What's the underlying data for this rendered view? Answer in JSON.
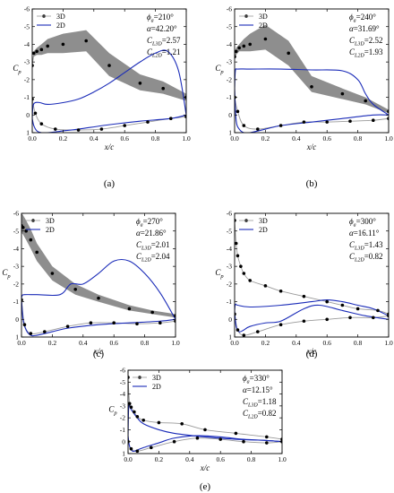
{
  "figure": {
    "panels": [
      {
        "id": "a",
        "caption": "(a)",
        "phi_label": "ϕ",
        "phi_sub": "a",
        "phi_value": "=210°",
        "alpha_label": "α",
        "alpha_value": "=42.20°",
        "cl3d_label": "C",
        "cl3d_sub": "L3D",
        "cl3d_value": "=2.57",
        "cl2d_label": "C",
        "cl2d_sub": "L2D",
        "cl2d_value": "=1.21"
      },
      {
        "id": "b",
        "caption": "(b)",
        "phi_label": "ϕ",
        "phi_sub": "a",
        "phi_value": "=240°",
        "alpha_label": "α",
        "alpha_value": "=31.69°",
        "cl3d_label": "C",
        "cl3d_sub": "L3D",
        "cl3d_value": "=2.52",
        "cl2d_label": "C",
        "cl2d_sub": "L2D",
        "cl2d_value": "=1.93"
      },
      {
        "id": "c",
        "caption": "(c)",
        "phi_label": "ϕ",
        "phi_sub": "a",
        "phi_value": "=270°",
        "alpha_label": "α",
        "alpha_value": "=21.86°",
        "cl3d_label": "C",
        "cl3d_sub": "L3D",
        "cl3d_value": "=2.01",
        "cl2d_label": "C",
        "cl2d_sub": "L2D",
        "cl2d_value": "=2.04"
      },
      {
        "id": "d",
        "caption": "(d)",
        "phi_label": "ϕ",
        "phi_sub": "a",
        "phi_value": "=300°",
        "alpha_label": "α",
        "alpha_value": "=16.11°",
        "cl3d_label": "C",
        "cl3d_sub": "L3D",
        "cl3d_value": "=1.43",
        "cl2d_label": "C",
        "cl2d_sub": "L2D",
        "cl2d_value": "=0.82"
      },
      {
        "id": "e",
        "caption": "(e)",
        "phi_label": "ϕ",
        "phi_sub": "a",
        "phi_value": "=330°",
        "alpha_label": "α",
        "alpha_value": "=12.15°",
        "cl3d_label": "C",
        "cl3d_sub": "L3D",
        "cl3d_value": "=1.18",
        "cl2d_label": "C",
        "cl2d_sub": "L2D",
        "cl2d_value": "=0.82"
      }
    ]
  },
  "chart_data": [
    {
      "type": "line",
      "panel": "a",
      "xlabel": "x/c",
      "ylabel": "C",
      "ylabel_sub": "p",
      "xlim": [
        0,
        1
      ],
      "ylim": [
        -6,
        1
      ],
      "y_inverted": true,
      "xticks": [
        "0.0",
        "0.2",
        "0.4",
        "0.6",
        "0.8",
        "1.0"
      ],
      "yticks": [
        "-6",
        "-5",
        "-4",
        "-3",
        "-2",
        "-1",
        "0",
        "1"
      ],
      "legend": [
        "3D",
        "2D"
      ],
      "legend_position": "top-left",
      "colors": {
        "2D": "#1a2bb8",
        "3D": "#000000",
        "band": "#8e8e8e"
      },
      "series": [
        {
          "name": "3D",
          "style": "markers-with-band",
          "x": [
            0.0,
            0.01,
            0.03,
            0.06,
            0.1,
            0.2,
            0.35,
            0.5,
            0.7,
            0.85,
            1.0
          ],
          "y": [
            -2.8,
            -3.5,
            -3.6,
            -3.7,
            -3.9,
            -4.0,
            -4.2,
            -2.8,
            -1.8,
            -1.5,
            -1.0
          ],
          "band_upper": [
            -3.0,
            -3.6,
            -3.8,
            -4.0,
            -4.3,
            -4.6,
            -4.8,
            -3.5,
            -2.3,
            -1.9,
            -1.2
          ],
          "band_lower": [
            -2.6,
            -3.3,
            -3.4,
            -3.4,
            -3.5,
            -3.5,
            -3.6,
            -2.2,
            -1.4,
            -1.2,
            -0.8
          ]
        },
        {
          "name": "3D",
          "style": "markers",
          "x": [
            0.0,
            0.02,
            0.06,
            0.15,
            0.3,
            0.45,
            0.6,
            0.75,
            0.9,
            1.0
          ],
          "y": [
            -0.9,
            -0.1,
            0.5,
            0.8,
            0.85,
            0.8,
            0.6,
            0.4,
            0.2,
            0.1
          ]
        },
        {
          "name": "2D",
          "style": "line",
          "x": [
            0.0,
            0.005,
            0.02,
            0.05,
            0.1,
            0.2,
            0.3,
            0.4,
            0.5,
            0.6,
            0.7,
            0.8,
            0.88,
            0.95,
            1.0
          ],
          "y": [
            0.2,
            -0.5,
            -0.7,
            -0.7,
            -0.6,
            -0.7,
            -0.9,
            -1.3,
            -1.8,
            -2.4,
            -3.0,
            -3.5,
            -3.6,
            -2.5,
            0.0
          ]
        },
        {
          "name": "2D",
          "style": "line",
          "x": [
            0.0,
            0.01,
            0.03,
            0.06,
            0.1,
            0.2,
            0.3,
            0.5,
            0.7,
            0.9,
            1.0
          ],
          "y": [
            0.2,
            0.6,
            0.9,
            1.0,
            1.0,
            0.9,
            0.8,
            0.55,
            0.35,
            0.2,
            0.0
          ]
        }
      ]
    },
    {
      "type": "line",
      "panel": "b",
      "xlabel": "x/c",
      "ylabel": "C",
      "ylabel_sub": "p",
      "xlim": [
        0,
        1
      ],
      "ylim": [
        -6,
        1
      ],
      "y_inverted": true,
      "xticks": [
        "0.0",
        "0.2",
        "0.4",
        "0.6",
        "0.8",
        "1.0"
      ],
      "yticks": [
        "-6",
        "-5",
        "-4",
        "-3",
        "-2",
        "-1",
        "0",
        "1"
      ],
      "legend": [
        "3D",
        "2D"
      ],
      "legend_position": "top-left",
      "colors": {
        "2D": "#1a2bb8",
        "3D": "#000000",
        "band": "#8e8e8e"
      },
      "series": [
        {
          "name": "3D",
          "style": "markers-with-band",
          "x": [
            0.0,
            0.01,
            0.03,
            0.06,
            0.1,
            0.2,
            0.35,
            0.5,
            0.7,
            0.85,
            1.0
          ],
          "y": [
            -3.3,
            -3.6,
            -3.8,
            -3.9,
            -4.0,
            -4.3,
            -3.5,
            -1.6,
            -1.2,
            -0.8,
            -0.2
          ],
          "band_upper": [
            -3.5,
            -3.8,
            -4.0,
            -4.3,
            -4.6,
            -5.1,
            -4.2,
            -2.2,
            -1.5,
            -1.0,
            -0.3
          ],
          "band_lower": [
            -3.1,
            -3.4,
            -3.6,
            -3.6,
            -3.6,
            -3.7,
            -2.8,
            -1.3,
            -0.9,
            -0.6,
            -0.1
          ]
        },
        {
          "name": "3D",
          "style": "markers",
          "x": [
            0.0,
            0.02,
            0.06,
            0.15,
            0.3,
            0.45,
            0.6,
            0.75,
            0.9,
            1.0
          ],
          "y": [
            -1.0,
            -0.2,
            0.6,
            0.8,
            0.6,
            0.4,
            0.4,
            0.35,
            0.3,
            0.2
          ]
        },
        {
          "name": "2D",
          "style": "line",
          "x": [
            0.0,
            0.005,
            0.02,
            0.1,
            0.3,
            0.5,
            0.7,
            0.8,
            0.85,
            0.9,
            1.0
          ],
          "y": [
            -1.5,
            -2.5,
            -2.6,
            -2.6,
            -2.6,
            -2.55,
            -2.5,
            -2.0,
            -1.2,
            -0.6,
            0.0
          ]
        },
        {
          "name": "2D",
          "style": "line",
          "x": [
            0.0,
            0.01,
            0.03,
            0.06,
            0.1,
            0.2,
            0.3,
            0.5,
            0.7,
            0.9,
            1.0
          ],
          "y": [
            -1.5,
            0.3,
            0.8,
            1.0,
            1.0,
            0.8,
            0.6,
            0.4,
            0.2,
            0.0,
            0.0
          ]
        }
      ]
    },
    {
      "type": "line",
      "panel": "c",
      "xlabel": "x/c",
      "ylabel": "C",
      "ylabel_sub": "p",
      "xlim": [
        0,
        1
      ],
      "ylim": [
        -6,
        1
      ],
      "y_inverted": true,
      "xticks": [
        "0.0",
        "0.2",
        "0.4",
        "0.6",
        "0.8",
        "1.0"
      ],
      "yticks": [
        "-6",
        "-5",
        "-4",
        "-3",
        "-2",
        "-1",
        "0",
        "1"
      ],
      "legend": [
        "3D",
        "2D"
      ],
      "legend_position": "top-left",
      "colors": {
        "2D": "#1a2bb8",
        "3D": "#000000",
        "band": "#8e8e8e"
      },
      "series": [
        {
          "name": "3D",
          "style": "markers-with-band",
          "x": [
            0.0,
            0.01,
            0.03,
            0.06,
            0.1,
            0.2,
            0.35,
            0.5,
            0.7,
            0.85,
            1.0
          ],
          "y": [
            -5.3,
            -5.2,
            -5.0,
            -4.5,
            -3.8,
            -2.6,
            -1.7,
            -1.2,
            -0.6,
            -0.4,
            -0.2
          ],
          "band_upper": [
            -6.0,
            -5.9,
            -5.6,
            -5.1,
            -4.3,
            -3.0,
            -2.0,
            -1.4,
            -0.8,
            -0.5,
            -0.3
          ],
          "band_lower": [
            -4.9,
            -4.8,
            -4.5,
            -4.0,
            -3.3,
            -2.2,
            -1.4,
            -1.0,
            -0.5,
            -0.3,
            -0.1
          ]
        },
        {
          "name": "3D",
          "style": "markers",
          "x": [
            0.0,
            0.02,
            0.06,
            0.15,
            0.3,
            0.45,
            0.6,
            0.75,
            0.9,
            1.0
          ],
          "y": [
            -1.1,
            0.3,
            0.8,
            0.7,
            0.4,
            0.2,
            0.2,
            0.25,
            0.2,
            0.1
          ]
        },
        {
          "name": "2D",
          "style": "line",
          "x": [
            0.0,
            0.005,
            0.02,
            0.1,
            0.25,
            0.32,
            0.4,
            0.5,
            0.6,
            0.7,
            0.8,
            0.9,
            1.0
          ],
          "y": [
            -1.2,
            -1.35,
            -1.4,
            -1.4,
            -1.4,
            -2.0,
            -2.0,
            -2.6,
            -3.3,
            -3.3,
            -2.6,
            -1.5,
            0.0
          ]
        },
        {
          "name": "2D",
          "style": "line",
          "x": [
            0.0,
            0.01,
            0.03,
            0.06,
            0.1,
            0.2,
            0.3,
            0.5,
            0.7,
            0.9,
            1.0
          ],
          "y": [
            -1.2,
            0.0,
            0.6,
            0.9,
            0.9,
            0.7,
            0.5,
            0.3,
            0.2,
            0.1,
            0.0
          ]
        }
      ]
    },
    {
      "type": "line",
      "panel": "d",
      "xlabel": "x/c",
      "ylabel": "C",
      "ylabel_sub": "p",
      "xlim": [
        0,
        1
      ],
      "ylim": [
        -6,
        1
      ],
      "y_inverted": true,
      "xticks": [
        "0.0",
        "0.2",
        "0.4",
        "0.6",
        "0.8",
        "1.0"
      ],
      "yticks": [
        "-6",
        "-5",
        "-4",
        "-3",
        "-2",
        "-1",
        "0",
        "1"
      ],
      "legend": [
        "3D",
        "2D"
      ],
      "legend_position": "top-left",
      "colors": {
        "2D": "#1a2bb8",
        "3D": "#000000",
        "band": "#8e8e8e"
      },
      "series": [
        {
          "name": "3D",
          "style": "markers-with-line",
          "x": [
            0.0,
            0.01,
            0.02,
            0.04,
            0.06,
            0.1,
            0.2,
            0.3,
            0.45,
            0.6,
            0.7,
            0.8,
            0.93,
            1.0
          ],
          "y": [
            -5.6,
            -4.3,
            -3.6,
            -3.0,
            -2.6,
            -2.2,
            -1.9,
            -1.6,
            -1.3,
            -1.0,
            -0.8,
            -0.6,
            -0.5,
            -0.3
          ]
        },
        {
          "name": "3D",
          "style": "markers",
          "x": [
            0.0,
            0.02,
            0.06,
            0.15,
            0.3,
            0.45,
            0.6,
            0.75,
            0.9,
            1.0
          ],
          "y": [
            -0.3,
            0.6,
            0.9,
            0.7,
            0.3,
            0.1,
            0.0,
            -0.1,
            -0.1,
            -0.2
          ]
        },
        {
          "name": "2D",
          "style": "line",
          "x": [
            0.0,
            0.005,
            0.02,
            0.1,
            0.3,
            0.5,
            0.6,
            0.7,
            0.8,
            0.9,
            1.0
          ],
          "y": [
            -0.5,
            -0.85,
            -0.8,
            -0.7,
            -0.8,
            -1.0,
            -1.1,
            -1.0,
            -0.8,
            -0.6,
            -0.2
          ]
        },
        {
          "name": "2D",
          "style": "line",
          "x": [
            0.0,
            0.01,
            0.03,
            0.06,
            0.1,
            0.2,
            0.3,
            0.45,
            0.55,
            0.7,
            0.85,
            1.0
          ],
          "y": [
            -0.5,
            0.4,
            0.7,
            0.6,
            0.4,
            0.2,
            0.1,
            -0.6,
            -0.8,
            -0.5,
            -0.2,
            0.0
          ]
        }
      ]
    },
    {
      "type": "line",
      "panel": "e",
      "xlabel": "x/c",
      "ylabel": "C",
      "ylabel_sub": "p",
      "xlim": [
        0,
        1
      ],
      "ylim": [
        -6,
        1
      ],
      "y_inverted": true,
      "xticks": [
        "0.0",
        "0.2",
        "0.4",
        "0.6",
        "0.8",
        "1.0"
      ],
      "yticks": [
        "-6",
        "-5",
        "-4",
        "-3",
        "-2",
        "-1",
        "0",
        "1"
      ],
      "legend": [
        "3D",
        "2D"
      ],
      "legend_position": "top-left",
      "colors": {
        "2D": "#1a2bb8",
        "3D": "#000000",
        "band": "#8e8e8e"
      },
      "series": [
        {
          "name": "3D",
          "style": "markers-with-line",
          "x": [
            0.0,
            0.01,
            0.02,
            0.04,
            0.06,
            0.1,
            0.2,
            0.35,
            0.5,
            0.7,
            0.9,
            1.0
          ],
          "y": [
            -5.4,
            -3.2,
            -2.9,
            -2.5,
            -2.1,
            -1.8,
            -1.6,
            -1.5,
            -1.0,
            -0.7,
            -0.4,
            -0.2
          ]
        },
        {
          "name": "3D",
          "style": "markers",
          "x": [
            0.0,
            0.02,
            0.06,
            0.15,
            0.3,
            0.45,
            0.6,
            0.75,
            0.9,
            1.0
          ],
          "y": [
            0.0,
            0.6,
            0.8,
            0.5,
            0.0,
            -0.3,
            -0.2,
            0.0,
            0.1,
            0.0
          ]
        },
        {
          "name": "2D",
          "style": "line",
          "x": [
            0.0,
            0.005,
            0.02,
            0.06,
            0.1,
            0.2,
            0.3,
            0.5,
            0.7,
            0.9,
            1.0
          ],
          "y": [
            -0.5,
            -3.0,
            -2.7,
            -2.0,
            -1.5,
            -1.0,
            -0.7,
            -0.4,
            -0.2,
            -0.1,
            0.0
          ]
        },
        {
          "name": "2D",
          "style": "line",
          "x": [
            0.0,
            0.01,
            0.03,
            0.06,
            0.1,
            0.2,
            0.3,
            0.45,
            0.6,
            0.75,
            0.9,
            1.0
          ],
          "y": [
            -0.5,
            0.4,
            0.8,
            0.7,
            0.5,
            0.1,
            -0.3,
            -0.5,
            -0.4,
            -0.2,
            -0.1,
            0.0
          ]
        }
      ]
    }
  ]
}
